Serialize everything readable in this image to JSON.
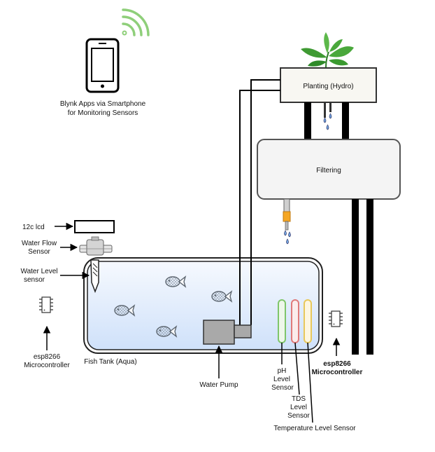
{
  "smartphone": {
    "line1": "Blynk Apps via Smartphone",
    "line2": "for Monitoring Sensors",
    "icon": "smartphone-icon",
    "wifi_icon": "wifi-icon",
    "wifi_color": "#8fcf7a"
  },
  "planting": {
    "label": "Planting (Hydro)",
    "plant_icon": "plant-icon"
  },
  "filtering": {
    "label": "Filtering"
  },
  "lcd": {
    "label": "12c lcd"
  },
  "flow_sensor": {
    "line1": "Water Flow",
    "line2": "Sensor"
  },
  "level_sensor": {
    "line1": "Water Level",
    "line2": "sensor"
  },
  "mcu_left": {
    "line1": "esp8266",
    "line2": "Microcontroller"
  },
  "mcu_right": {
    "line1": "esp8266",
    "line2": "Microcontroller"
  },
  "tank": {
    "label": "Fish Tank (Aqua)",
    "fish_icon": "fish-icon",
    "water_color": "#dbe9fb"
  },
  "pump": {
    "label": "Water Pump"
  },
  "ph_sensor": {
    "line1": "pH",
    "line2": "Level",
    "line3": "Sensor",
    "color": "#7fc66a"
  },
  "tds_sensor": {
    "line1": "TDS",
    "line2": "Level",
    "line3": "Sensor",
    "color": "#e07a7a"
  },
  "temp_sensor": {
    "label": "Temperature Level Sensor",
    "color": "#e8c85a"
  }
}
